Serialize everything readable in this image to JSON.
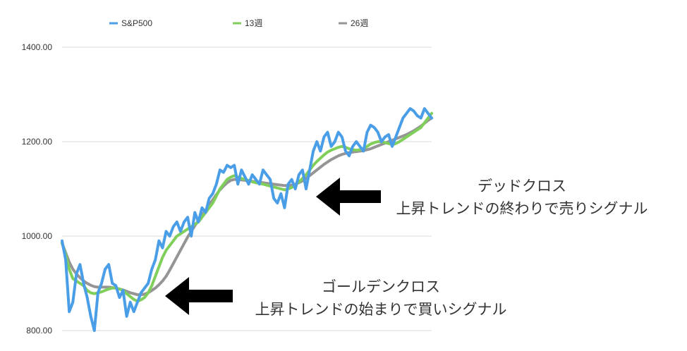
{
  "chart_data": {
    "type": "line",
    "ylim": [
      800,
      1400
    ],
    "y_ticks": [
      "1400.00",
      "1200.00",
      "1000.00",
      "800.00"
    ],
    "y_tick_values": [
      1400,
      1200,
      1000,
      800
    ],
    "grid": "horizontal",
    "legend": "top",
    "x": [
      0,
      1,
      2,
      3,
      4,
      5,
      6,
      7,
      8,
      9,
      10,
      11,
      12,
      13,
      14,
      15,
      16,
      17,
      18,
      19,
      20,
      21,
      22,
      23,
      24,
      25,
      26,
      27,
      28,
      29,
      30,
      31,
      32,
      33,
      34,
      35,
      36,
      37,
      38,
      39,
      40,
      41,
      42,
      43,
      44,
      45,
      46,
      47,
      48,
      49,
      50,
      51,
      52,
      53,
      54,
      55,
      56,
      57,
      58,
      59,
      60,
      61,
      62,
      63,
      64,
      65,
      66,
      67,
      68,
      69,
      70,
      71,
      72,
      73,
      74,
      75,
      76,
      77,
      78,
      79,
      80,
      81,
      82,
      83,
      84,
      85,
      86,
      87,
      88,
      89,
      90,
      91,
      92,
      93,
      94,
      95,
      96,
      97,
      98,
      99,
      100,
      101,
      102,
      103
    ],
    "series": [
      {
        "name": "S&P500",
        "color": "#4a9ee8",
        "values": [
          990,
          950,
          840,
          860,
          920,
          940,
          900,
          870,
          830,
          800,
          880,
          900,
          930,
          940,
          900,
          895,
          870,
          885,
          830,
          860,
          840,
          860,
          880,
          890,
          900,
          930,
          950,
          990,
          975,
          1010,
          1000,
          1020,
          1030,
          1010,
          1030,
          1040,
          1000,
          1050,
          1030,
          1060,
          1050,
          1080,
          1090,
          1110,
          1140,
          1135,
          1150,
          1145,
          1150,
          1110,
          1140,
          1125,
          1110,
          1130,
          1120,
          1110,
          1140,
          1130,
          1120,
          1080,
          1070,
          1090,
          1060,
          1110,
          1120,
          1100,
          1130,
          1140,
          1100,
          1140,
          1180,
          1200,
          1180,
          1210,
          1220,
          1190,
          1200,
          1220,
          1210,
          1180,
          1170,
          1190,
          1200,
          1190,
          1180,
          1220,
          1235,
          1230,
          1220,
          1200,
          1210,
          1215,
          1190,
          1210,
          1230,
          1250,
          1260,
          1270,
          1265,
          1255,
          1250,
          1270,
          1260,
          1250
        ]
      },
      {
        "name": "13週",
        "color": "#7fcf5a",
        "values": [
          985,
          960,
          930,
          910,
          905,
          900,
          895,
          885,
          880,
          878,
          880,
          882,
          885,
          888,
          890,
          890,
          888,
          885,
          878,
          872,
          866,
          862,
          865,
          870,
          880,
          895,
          915,
          935,
          955,
          970,
          980,
          990,
          1000,
          1005,
          1010,
          1015,
          1020,
          1025,
          1030,
          1040,
          1050,
          1060,
          1070,
          1085,
          1100,
          1110,
          1120,
          1125,
          1128,
          1125,
          1122,
          1120,
          1118,
          1115,
          1113,
          1112,
          1110,
          1108,
          1106,
          1104,
          1102,
          1100,
          1098,
          1100,
          1103,
          1108,
          1115,
          1122,
          1130,
          1140,
          1150,
          1158,
          1165,
          1172,
          1178,
          1182,
          1185,
          1188,
          1190,
          1188,
          1185,
          1183,
          1182,
          1183,
          1185,
          1190,
          1195,
          1198,
          1200,
          1200,
          1198,
          1196,
          1194,
          1196,
          1200,
          1205,
          1210,
          1215,
          1220,
          1225,
          1230,
          1240,
          1250,
          1260
        ]
      },
      {
        "name": "26週",
        "color": "#959595",
        "values": [
          985,
          965,
          945,
          930,
          920,
          912,
          905,
          900,
          896,
          893,
          892,
          892,
          892,
          892,
          891,
          890,
          888,
          886,
          883,
          880,
          878,
          876,
          876,
          877,
          880,
          885,
          890,
          897,
          905,
          915,
          928,
          942,
          956,
          970,
          984,
          998,
          1010,
          1022,
          1033,
          1044,
          1055,
          1066,
          1077,
          1088,
          1098,
          1106,
          1113,
          1118,
          1120,
          1120,
          1119,
          1118,
          1117,
          1116,
          1115,
          1114,
          1113,
          1112,
          1111,
          1110,
          1109,
          1108,
          1107,
          1107,
          1108,
          1110,
          1113,
          1117,
          1122,
          1128,
          1134,
          1140,
          1146,
          1152,
          1157,
          1162,
          1166,
          1170,
          1173,
          1175,
          1177,
          1178,
          1179,
          1180,
          1181,
          1183,
          1185,
          1188,
          1191,
          1194,
          1197,
          1200,
          1203,
          1206,
          1209,
          1212,
          1215,
          1219,
          1223,
          1228,
          1233,
          1239,
          1245,
          1250
        ]
      }
    ]
  },
  "annotations": {
    "dead_cross_line1": "デッドクロス",
    "dead_cross_line2": "上昇トレンドの終わりで売りシグナル",
    "golden_cross_line1": "ゴールデンクロス",
    "golden_cross_line2": "上昇トレンドの始まりで買いシグナル"
  }
}
